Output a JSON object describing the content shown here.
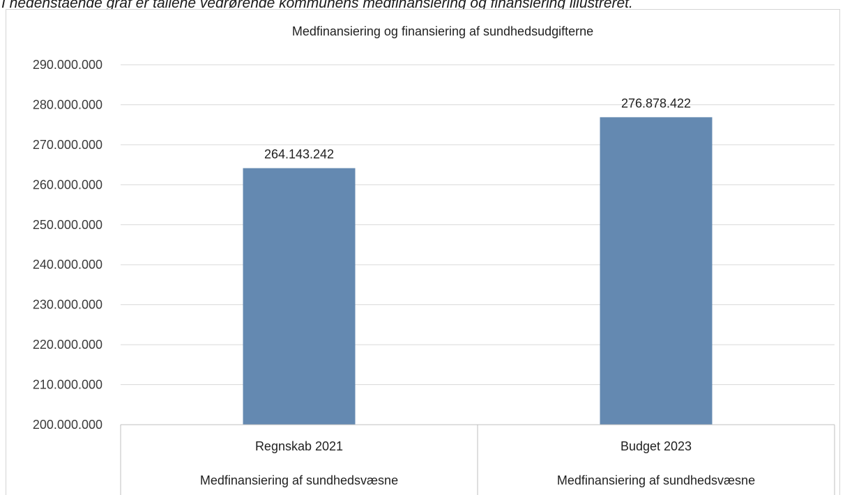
{
  "page": {
    "caption": "I nedenstående graf er tallene vedrørende kommunens medfinansiering og finansiering illustreret."
  },
  "chart_data": {
    "type": "bar",
    "title": "Medfinansiering og finansiering af sundhedsudgifterne",
    "categories": [
      "Regnskab 2021",
      "Budget 2023"
    ],
    "category_groups": [
      "Medfinansiering af sundhedsvæsne",
      "Medfinansiering af sundhedsvæsne"
    ],
    "values": [
      264143242,
      276878422
    ],
    "value_labels": [
      "264.143.242",
      "276.878.422"
    ],
    "ylim": [
      200000000,
      290000000
    ],
    "y_ticks": [
      200000000,
      210000000,
      220000000,
      230000000,
      240000000,
      250000000,
      260000000,
      270000000,
      280000000,
      290000000
    ],
    "y_tick_labels": [
      "200.000.000",
      "210.000.000",
      "220.000.000",
      "230.000.000",
      "240.000.000",
      "250.000.000",
      "260.000.000",
      "270.000.000",
      "280.000.000",
      "290.000.000"
    ],
    "xlabel": "",
    "ylabel": "",
    "grid": true,
    "legend": "none",
    "colors": {
      "bar": "#6489b1",
      "grid": "#d9d9d9",
      "axis": "#bfbfbf"
    }
  }
}
